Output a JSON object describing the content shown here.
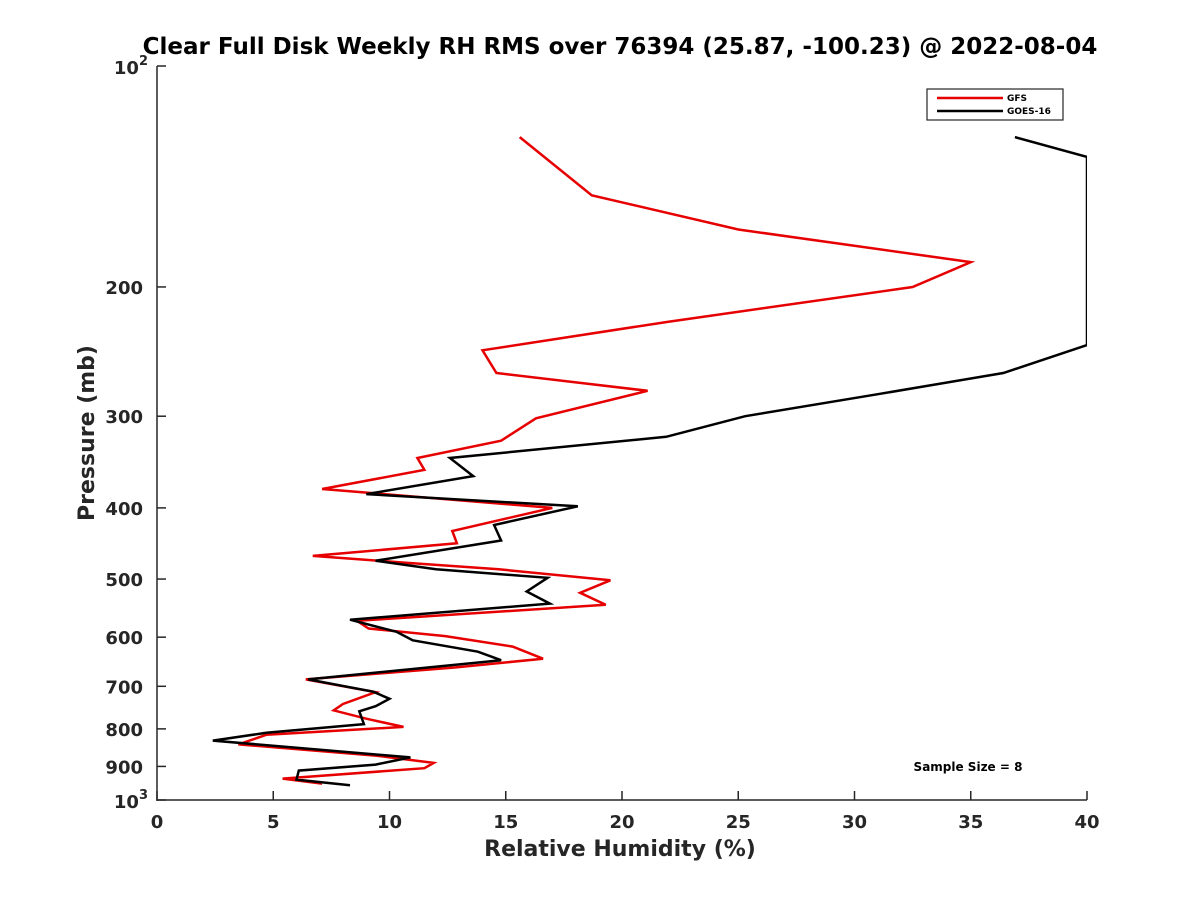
{
  "chart_data": {
    "type": "line",
    "title": "Clear Full Disk Weekly RH RMS over 76394 (25.87, -100.23) @ 2022-08-04",
    "xlabel": "Relative Humidity (%)",
    "ylabel": "Pressure (mb)",
    "xlim": [
      0,
      40
    ],
    "ylim": [
      100,
      1000
    ],
    "y_scale": "log",
    "y_reversed": true,
    "x_ticks": [
      0,
      5,
      10,
      15,
      20,
      25,
      30,
      35,
      40
    ],
    "y_ticks": [
      100,
      200,
      300,
      400,
      500,
      600,
      700,
      800,
      900,
      1000
    ],
    "y_tick_labels": {
      "top_base": "10",
      "top_exp": "2",
      "bottom_base": "10",
      "bottom_exp": "3",
      "middle": [
        "200",
        "300",
        "400",
        "500",
        "600",
        "700",
        "800",
        "900"
      ]
    },
    "legend": {
      "placement": "top-right",
      "entries": [
        "GFS",
        "GOES-16"
      ]
    },
    "annotation": "Sample Size = 8",
    "grid": false,
    "series": [
      {
        "name": "GFS",
        "color": "#e60000",
        "points": [
          [
            15.6,
            125
          ],
          [
            18.7,
            150
          ],
          [
            25.0,
            167
          ],
          [
            35.0,
            185
          ],
          [
            32.5,
            200
          ],
          [
            22.0,
            223
          ],
          [
            14.0,
            244
          ],
          [
            14.6,
            262
          ],
          [
            21.1,
            277
          ],
          [
            16.3,
            302
          ],
          [
            14.8,
            324
          ],
          [
            11.2,
            342
          ],
          [
            11.5,
            355
          ],
          [
            7.1,
            377
          ],
          [
            17.0,
            400
          ],
          [
            12.7,
            430
          ],
          [
            12.9,
            447
          ],
          [
            6.7,
            465
          ],
          [
            10.7,
            475
          ],
          [
            14.7,
            485
          ],
          [
            19.5,
            502
          ],
          [
            18.2,
            522
          ],
          [
            19.3,
            542
          ],
          [
            8.6,
            570
          ],
          [
            9.1,
            584
          ],
          [
            12.4,
            598
          ],
          [
            15.3,
            618
          ],
          [
            16.6,
            642
          ],
          [
            12.8,
            660
          ],
          [
            6.4,
            685
          ],
          [
            9.4,
            713
          ],
          [
            8.0,
            740
          ],
          [
            7.6,
            755
          ],
          [
            9.0,
            775
          ],
          [
            10.6,
            795
          ],
          [
            4.7,
            815
          ],
          [
            3.5,
            840
          ],
          [
            9.4,
            870
          ],
          [
            11.9,
            890
          ],
          [
            11.5,
            905
          ],
          [
            5.4,
            935
          ],
          [
            7.1,
            950
          ]
        ]
      },
      {
        "name": "GOES-16",
        "color": "#000000",
        "points": [
          [
            36.9,
            125
          ],
          [
            40.0,
            133
          ],
          [
            40.0,
            240
          ],
          [
            36.4,
            262
          ],
          [
            31.0,
            280
          ],
          [
            25.3,
            300
          ],
          [
            21.9,
            320
          ],
          [
            12.6,
            342
          ],
          [
            13.6,
            362
          ],
          [
            9.0,
            383
          ],
          [
            18.1,
            398
          ],
          [
            14.5,
            422
          ],
          [
            14.8,
            443
          ],
          [
            9.4,
            472
          ],
          [
            12.0,
            485
          ],
          [
            16.8,
            498
          ],
          [
            15.9,
            520
          ],
          [
            16.9,
            540
          ],
          [
            8.3,
            568
          ],
          [
            10.3,
            590
          ],
          [
            11.0,
            606
          ],
          [
            13.8,
            628
          ],
          [
            14.8,
            645
          ],
          [
            6.5,
            685
          ],
          [
            9.3,
            712
          ],
          [
            10.0,
            728
          ],
          [
            9.4,
            745
          ],
          [
            8.7,
            757
          ],
          [
            8.9,
            788
          ],
          [
            4.7,
            810
          ],
          [
            2.4,
            830
          ],
          [
            10.9,
            875
          ],
          [
            9.4,
            895
          ],
          [
            6.1,
            912
          ],
          [
            6.0,
            938
          ],
          [
            8.3,
            955
          ]
        ]
      }
    ]
  }
}
